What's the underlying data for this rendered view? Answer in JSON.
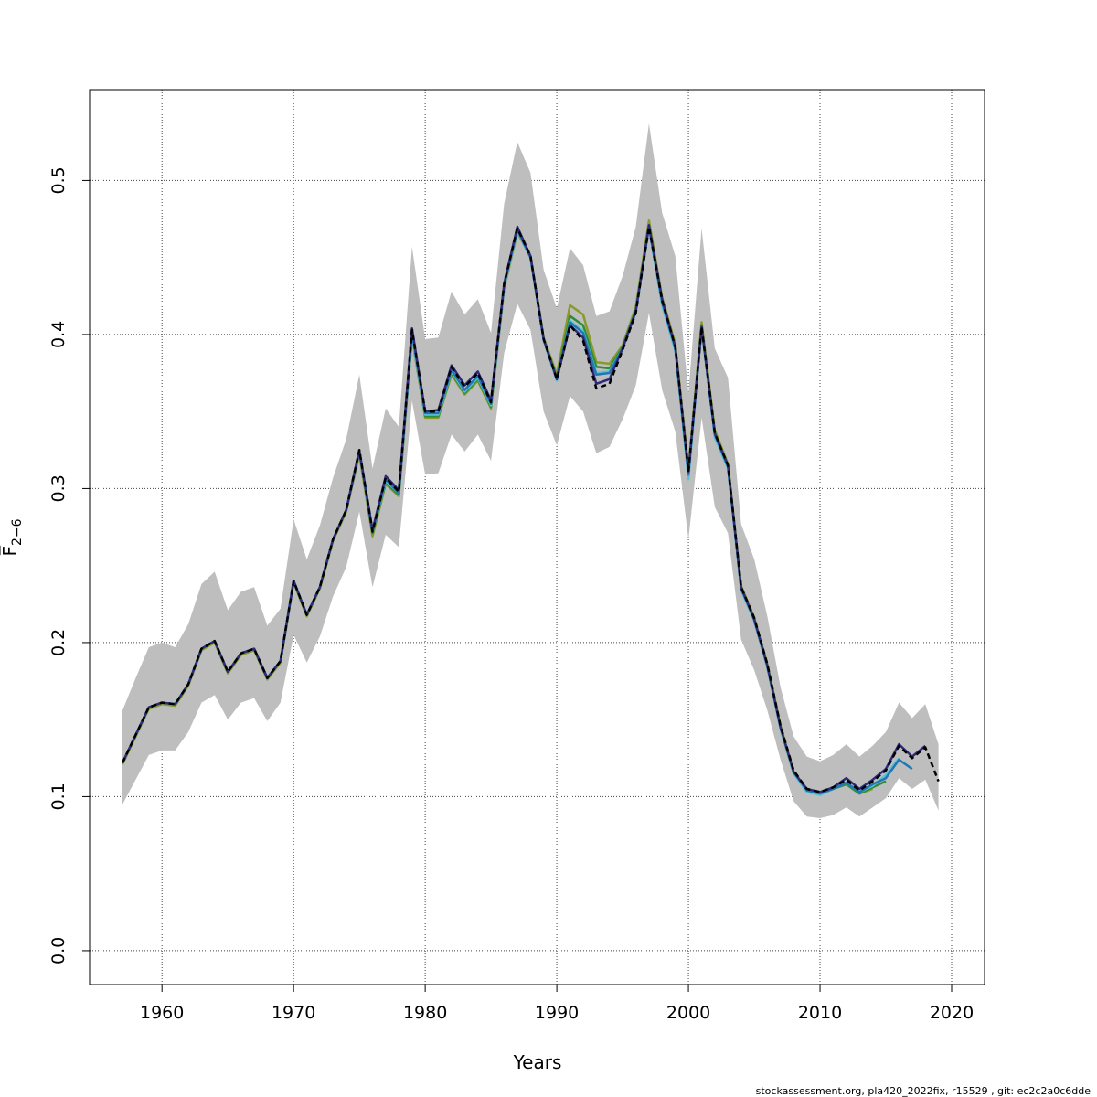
{
  "chart_data": {
    "type": "line",
    "xlabel": "Years",
    "ylabel": "F̅",
    "ylabel_sub": "2−6",
    "xlim": [
      1954.5,
      2022.5
    ],
    "ylim": [
      -0.022,
      0.559
    ],
    "x_ticks": [
      1960,
      1970,
      1980,
      1990,
      2000,
      2010,
      2020
    ],
    "x_tick_labels": [
      "1960",
      "1970",
      "1980",
      "1990",
      "2000",
      "2010",
      "2020"
    ],
    "y_ticks": [
      0.0,
      0.1,
      0.2,
      0.3,
      0.4,
      0.5
    ],
    "y_tick_labels": [
      "0.0",
      "0.1",
      "0.2",
      "0.3",
      "0.4",
      "0.5"
    ],
    "grid": true,
    "band_color": "#bebebe",
    "confidence_band": {
      "x": [
        1957,
        1958,
        1959,
        1960,
        1961,
        1962,
        1963,
        1964,
        1965,
        1966,
        1967,
        1968,
        1969,
        1970,
        1971,
        1972,
        1973,
        1974,
        1975,
        1976,
        1977,
        1978,
        1979,
        1980,
        1981,
        1982,
        1983,
        1984,
        1985,
        1986,
        1987,
        1988,
        1989,
        1990,
        1991,
        1992,
        1993,
        1994,
        1995,
        1996,
        1997,
        1998,
        1999,
        2000,
        2001,
        2002,
        2003,
        2004,
        2005,
        2006,
        2007,
        2008,
        2009,
        2010,
        2011,
        2012,
        2013,
        2014,
        2015,
        2016,
        2017,
        2018,
        2019
      ],
      "lower": [
        0.095,
        0.111,
        0.127,
        0.13,
        0.13,
        0.142,
        0.161,
        0.166,
        0.15,
        0.161,
        0.164,
        0.149,
        0.161,
        0.205,
        0.187,
        0.204,
        0.23,
        0.249,
        0.285,
        0.236,
        0.27,
        0.262,
        0.357,
        0.309,
        0.31,
        0.335,
        0.324,
        0.335,
        0.318,
        0.388,
        0.42,
        0.403,
        0.35,
        0.328,
        0.36,
        0.35,
        0.323,
        0.327,
        0.345,
        0.367,
        0.414,
        0.364,
        0.337,
        0.267,
        0.346,
        0.288,
        0.271,
        0.202,
        0.182,
        0.156,
        0.124,
        0.097,
        0.087,
        0.086,
        0.088,
        0.093,
        0.087,
        0.093,
        0.099,
        0.112,
        0.105,
        0.111,
        0.091
      ],
      "upper": [
        0.156,
        0.177,
        0.197,
        0.2,
        0.197,
        0.212,
        0.238,
        0.246,
        0.221,
        0.233,
        0.236,
        0.211,
        0.222,
        0.28,
        0.254,
        0.276,
        0.307,
        0.332,
        0.374,
        0.313,
        0.352,
        0.34,
        0.457,
        0.397,
        0.398,
        0.428,
        0.413,
        0.423,
        0.401,
        0.485,
        0.525,
        0.505,
        0.442,
        0.417,
        0.456,
        0.445,
        0.412,
        0.415,
        0.438,
        0.47,
        0.537,
        0.479,
        0.451,
        0.362,
        0.469,
        0.391,
        0.372,
        0.277,
        0.254,
        0.217,
        0.171,
        0.139,
        0.126,
        0.123,
        0.127,
        0.134,
        0.126,
        0.133,
        0.142,
        0.161,
        0.151,
        0.16,
        0.134
      ]
    },
    "series": [
      {
        "color": "#000000",
        "dashed": true,
        "x": [
          1957,
          1958,
          1959,
          1960,
          1961,
          1962,
          1963,
          1964,
          1965,
          1966,
          1967,
          1968,
          1969,
          1970,
          1971,
          1972,
          1973,
          1974,
          1975,
          1976,
          1977,
          1978,
          1979,
          1980,
          1981,
          1982,
          1983,
          1984,
          1985,
          1986,
          1987,
          1988,
          1989,
          1990,
          1991,
          1992,
          1993,
          1994,
          1995,
          1996,
          1997,
          1998,
          1999,
          2000,
          2001,
          2002,
          2003,
          2004,
          2005,
          2006,
          2007,
          2008,
          2009,
          2010,
          2011,
          2012,
          2013,
          2014,
          2015,
          2016,
          2017,
          2018,
          2019
        ],
        "values": [
          0.122,
          0.14,
          0.158,
          0.161,
          0.16,
          0.173,
          0.196,
          0.201,
          0.181,
          0.193,
          0.196,
          0.177,
          0.188,
          0.24,
          0.218,
          0.236,
          0.267,
          0.286,
          0.325,
          0.272,
          0.307,
          0.298,
          0.403,
          0.35,
          0.35,
          0.379,
          0.366,
          0.375,
          0.356,
          0.433,
          0.469,
          0.451,
          0.397,
          0.371,
          0.406,
          0.396,
          0.365,
          0.368,
          0.39,
          0.414,
          0.47,
          0.422,
          0.392,
          0.311,
          0.405,
          0.336,
          0.315,
          0.236,
          0.216,
          0.186,
          0.146,
          0.117,
          0.105,
          0.103,
          0.106,
          0.111,
          0.104,
          0.11,
          0.117,
          0.133,
          0.125,
          0.132,
          0.11
        ]
      },
      {
        "color": "#2e2a7a",
        "dashed": false,
        "x": [
          1957,
          1958,
          1959,
          1960,
          1961,
          1962,
          1963,
          1964,
          1965,
          1966,
          1967,
          1968,
          1969,
          1970,
          1971,
          1972,
          1973,
          1974,
          1975,
          1976,
          1977,
          1978,
          1979,
          1980,
          1981,
          1982,
          1983,
          1984,
          1985,
          1986,
          1987,
          1988,
          1989,
          1990,
          1991,
          1992,
          1993,
          1994,
          1995,
          1996,
          1997,
          1998,
          1999,
          2000,
          2001,
          2002,
          2003,
          2004,
          2005,
          2006,
          2007,
          2008,
          2009,
          2010,
          2011,
          2012,
          2013,
          2014,
          2015,
          2016,
          2017,
          2018
        ],
        "values": [
          0.122,
          0.14,
          0.158,
          0.161,
          0.16,
          0.173,
          0.196,
          0.201,
          0.181,
          0.193,
          0.196,
          0.177,
          0.188,
          0.24,
          0.218,
          0.236,
          0.267,
          0.286,
          0.325,
          0.273,
          0.308,
          0.299,
          0.404,
          0.35,
          0.351,
          0.38,
          0.367,
          0.376,
          0.357,
          0.433,
          0.47,
          0.451,
          0.397,
          0.371,
          0.406,
          0.398,
          0.368,
          0.371,
          0.391,
          0.415,
          0.471,
          0.423,
          0.392,
          0.311,
          0.405,
          0.336,
          0.315,
          0.236,
          0.215,
          0.185,
          0.145,
          0.116,
          0.105,
          0.103,
          0.106,
          0.112,
          0.105,
          0.111,
          0.118,
          0.134,
          0.126,
          0.133
        ]
      },
      {
        "color": "#1f77b4",
        "dashed": false,
        "x": [
          1957,
          1958,
          1959,
          1960,
          1961,
          1962,
          1963,
          1964,
          1965,
          1966,
          1967,
          1968,
          1969,
          1970,
          1971,
          1972,
          1973,
          1974,
          1975,
          1976,
          1977,
          1978,
          1979,
          1980,
          1981,
          1982,
          1983,
          1984,
          1985,
          1986,
          1987,
          1988,
          1989,
          1990,
          1991,
          1992,
          1993,
          1994,
          1995,
          1996,
          1997,
          1998,
          1999,
          2000,
          2001,
          2002,
          2003,
          2004,
          2005,
          2006,
          2007,
          2008,
          2009,
          2010,
          2011,
          2012,
          2013,
          2014,
          2015,
          2016,
          2017
        ],
        "values": [
          0.122,
          0.14,
          0.158,
          0.161,
          0.16,
          0.173,
          0.196,
          0.201,
          0.181,
          0.193,
          0.196,
          0.177,
          0.188,
          0.24,
          0.218,
          0.236,
          0.267,
          0.286,
          0.324,
          0.272,
          0.306,
          0.297,
          0.401,
          0.349,
          0.349,
          0.377,
          0.364,
          0.373,
          0.355,
          0.432,
          0.468,
          0.45,
          0.397,
          0.371,
          0.408,
          0.401,
          0.374,
          0.375,
          0.391,
          0.415,
          0.47,
          0.421,
          0.391,
          0.309,
          0.405,
          0.335,
          0.314,
          0.235,
          0.215,
          0.185,
          0.145,
          0.116,
          0.104,
          0.102,
          0.105,
          0.109,
          0.103,
          0.108,
          0.112,
          0.124,
          0.118
        ]
      },
      {
        "color": "#5bc2d6",
        "dashed": false,
        "x": [
          1957,
          1958,
          1959,
          1960,
          1961,
          1962,
          1963,
          1964,
          1965,
          1966,
          1967,
          1968,
          1969,
          1970,
          1971,
          1972,
          1973,
          1974,
          1975,
          1976,
          1977,
          1978,
          1979,
          1980,
          1981,
          1982,
          1983,
          1984,
          1985,
          1986,
          1987,
          1988,
          1989,
          1990,
          1991,
          1992,
          1993,
          1994,
          1995,
          1996,
          1997,
          1998,
          1999,
          2000,
          2001,
          2002,
          2003,
          2004,
          2005,
          2006,
          2007,
          2008,
          2009,
          2010,
          2011,
          2012,
          2013,
          2014,
          2015,
          2016
        ],
        "values": [
          0.122,
          0.14,
          0.158,
          0.161,
          0.16,
          0.173,
          0.196,
          0.201,
          0.181,
          0.193,
          0.196,
          0.177,
          0.188,
          0.24,
          0.218,
          0.236,
          0.267,
          0.286,
          0.324,
          0.272,
          0.305,
          0.297,
          0.399,
          0.348,
          0.348,
          0.376,
          0.363,
          0.372,
          0.354,
          0.431,
          0.467,
          0.45,
          0.396,
          0.37,
          0.409,
          0.402,
          0.375,
          0.376,
          0.391,
          0.415,
          0.469,
          0.419,
          0.389,
          0.306,
          0.404,
          0.333,
          0.313,
          0.234,
          0.214,
          0.184,
          0.144,
          0.115,
          0.103,
          0.101,
          0.105,
          0.109,
          0.103,
          0.107,
          0.114,
          0.125
        ]
      },
      {
        "color": "#2e8b3a",
        "dashed": false,
        "x": [
          1957,
          1958,
          1959,
          1960,
          1961,
          1962,
          1963,
          1964,
          1965,
          1966,
          1967,
          1968,
          1969,
          1970,
          1971,
          1972,
          1973,
          1974,
          1975,
          1976,
          1977,
          1978,
          1979,
          1980,
          1981,
          1982,
          1983,
          1984,
          1985,
          1986,
          1987,
          1988,
          1989,
          1990,
          1991,
          1992,
          1993,
          1994,
          1995,
          1996,
          1997,
          1998,
          1999,
          2000,
          2001,
          2002,
          2003,
          2004,
          2005,
          2006,
          2007,
          2008,
          2009,
          2010,
          2011,
          2012,
          2013,
          2014,
          2015
        ],
        "values": [
          0.122,
          0.14,
          0.158,
          0.161,
          0.16,
          0.173,
          0.196,
          0.201,
          0.181,
          0.193,
          0.196,
          0.177,
          0.188,
          0.24,
          0.218,
          0.236,
          0.267,
          0.286,
          0.324,
          0.271,
          0.304,
          0.296,
          0.399,
          0.347,
          0.347,
          0.375,
          0.362,
          0.371,
          0.353,
          0.431,
          0.468,
          0.451,
          0.397,
          0.372,
          0.412,
          0.406,
          0.379,
          0.378,
          0.392,
          0.416,
          0.471,
          0.421,
          0.391,
          0.309,
          0.406,
          0.336,
          0.315,
          0.235,
          0.214,
          0.184,
          0.144,
          0.115,
          0.104,
          0.102,
          0.105,
          0.108,
          0.102,
          0.106,
          0.11
        ]
      },
      {
        "color": "#8a9a2a",
        "dashed": false,
        "x": [
          1957,
          1958,
          1959,
          1960,
          1961,
          1962,
          1963,
          1964,
          1965,
          1966,
          1967,
          1968,
          1969,
          1970,
          1971,
          1972,
          1973,
          1974,
          1975,
          1976,
          1977,
          1978,
          1979,
          1980,
          1981,
          1982,
          1983,
          1984,
          1985,
          1986,
          1987,
          1988,
          1989,
          1990,
          1991,
          1992,
          1993,
          1994,
          1995,
          1996,
          1997,
          1998,
          1999,
          2000,
          2001,
          2002,
          2003,
          2004,
          2005,
          2006,
          2007,
          2008,
          2009,
          2010,
          2011,
          2012,
          2013,
          2014
        ],
        "values": [
          0.121,
          0.139,
          0.157,
          0.16,
          0.159,
          0.172,
          0.195,
          0.2,
          0.18,
          0.192,
          0.195,
          0.176,
          0.187,
          0.239,
          0.217,
          0.235,
          0.266,
          0.285,
          0.322,
          0.269,
          0.303,
          0.295,
          0.398,
          0.346,
          0.346,
          0.374,
          0.361,
          0.37,
          0.352,
          0.43,
          0.466,
          0.451,
          0.398,
          0.374,
          0.419,
          0.413,
          0.382,
          0.381,
          0.393,
          0.418,
          0.474,
          0.424,
          0.394,
          0.313,
          0.408,
          0.338,
          0.316,
          0.237,
          0.216,
          0.186,
          0.146,
          0.116,
          0.105,
          0.103,
          0.105,
          0.108,
          0.102,
          0.105
        ]
      }
    ],
    "footer_note": "stockassessment.org, pla420_2022fix, r15529 , git: ec2c2a0c6dde"
  }
}
